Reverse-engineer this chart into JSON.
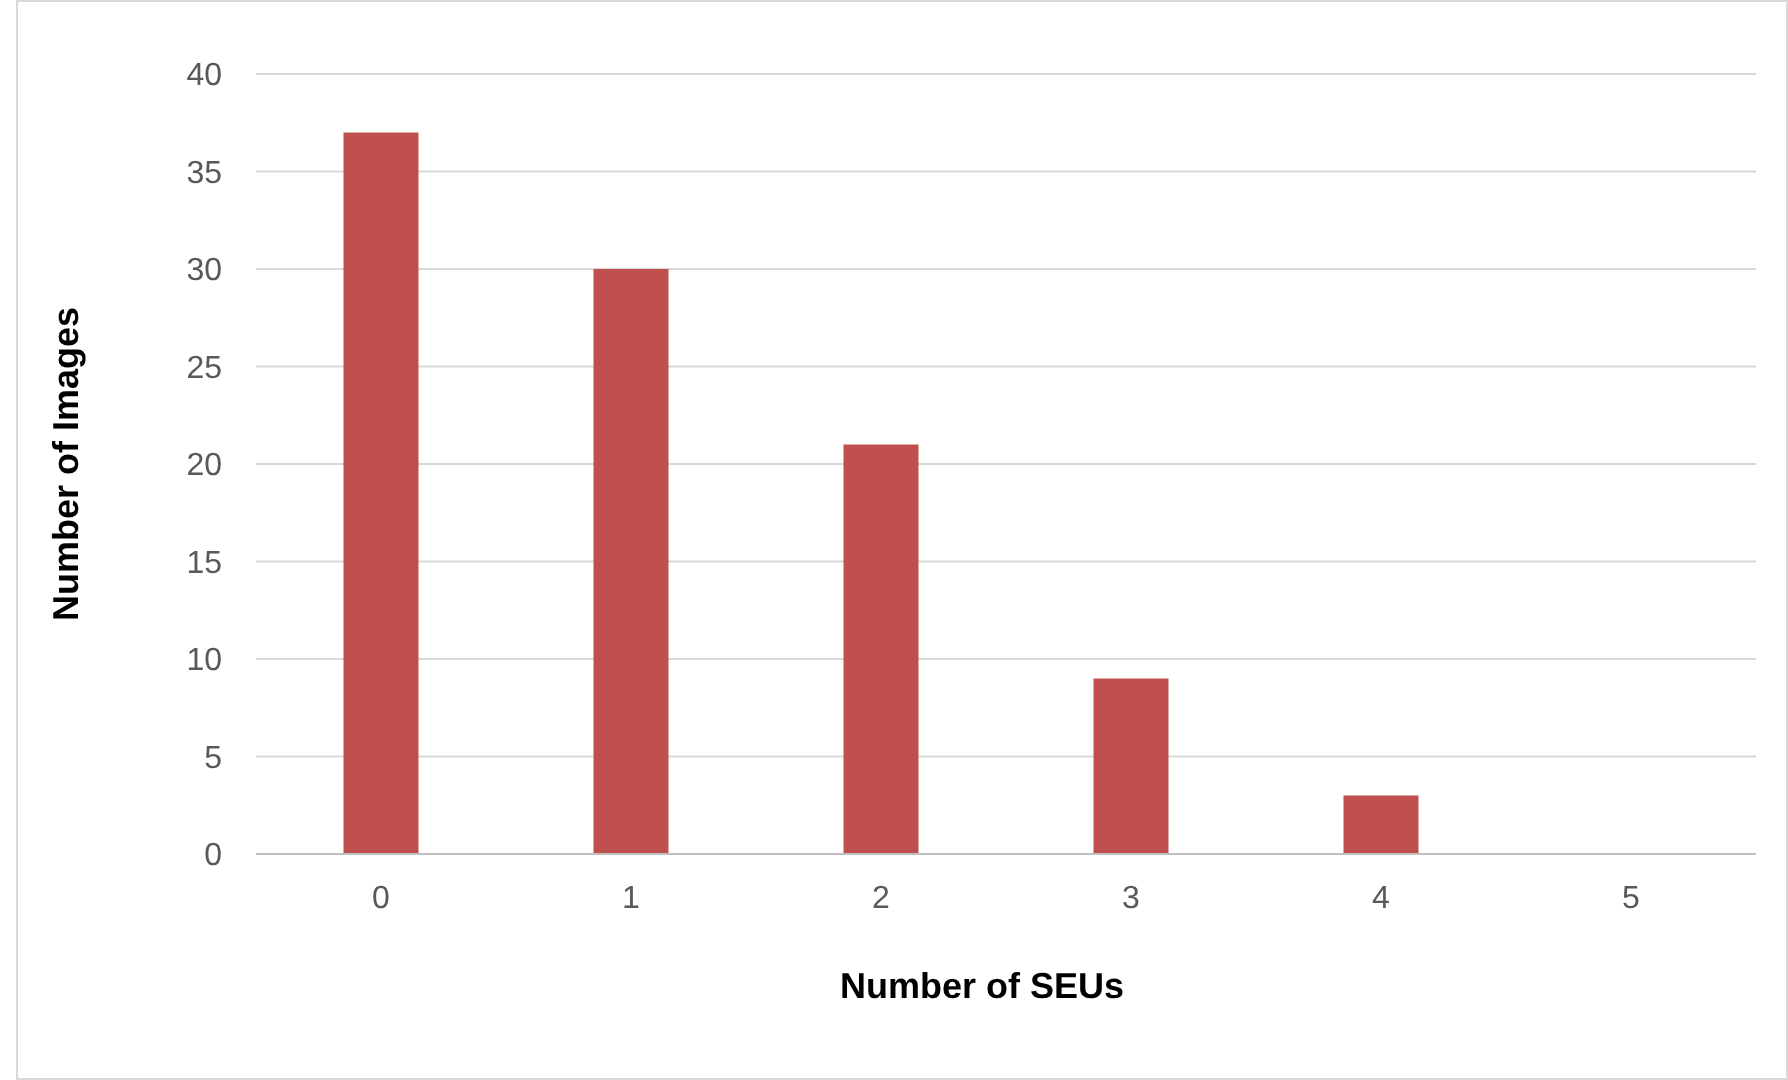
{
  "chart_data": {
    "type": "bar",
    "xlabel": "Number of SEUs",
    "ylabel": "Number of Images",
    "categories": [
      "0",
      "1",
      "2",
      "3",
      "4",
      "5"
    ],
    "values": [
      37,
      30,
      21,
      9,
      3,
      0
    ],
    "color": "#c0504d",
    "ylim": [
      0,
      40
    ],
    "yticks": [
      0,
      5,
      10,
      15,
      20,
      25,
      30,
      35,
      40
    ],
    "grid": "y"
  }
}
